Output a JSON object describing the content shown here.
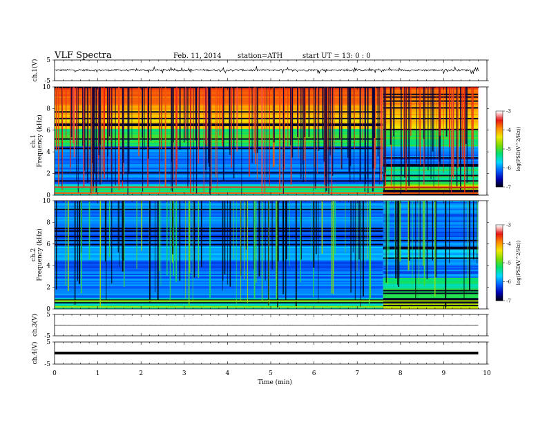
{
  "header": {
    "title": "VLF  Spectra",
    "date": "Feb. 11, 2014",
    "station": "station=ATH",
    "start": "start  UT  =    13: 0  : 0"
  },
  "chart_data": {
    "type": "spectrogram",
    "x": {
      "label": "Time  (min)",
      "range": [
        0,
        10
      ],
      "ticks": [
        "0",
        "1",
        "2",
        "3",
        "4",
        "5",
        "6",
        "7",
        "8",
        "9",
        "10"
      ],
      "data_end_min": 9.8
    },
    "panels": [
      {
        "kind": "waveform",
        "name": "ch.1",
        "ylabel": "ch.1(V)",
        "ylim": [
          -5,
          5
        ],
        "yticks": [
          "5",
          "-5"
        ],
        "level": 0.1,
        "noise": 0.45,
        "spikes": true
      },
      {
        "kind": "spectrogram",
        "name": "ch.1",
        "ylabel": "ch.1",
        "ylabel2": "Frequency  (kHz)",
        "ylim": [
          0,
          10
        ],
        "yticks": [
          "10",
          "8",
          "6",
          "4",
          "2",
          "0"
        ],
        "activity": "high",
        "regime_change_min": 7.6
      },
      {
        "kind": "spectrogram",
        "name": "ch.2",
        "ylabel": "ch.2",
        "ylabel2": "Frequency  (kHz)",
        "ylim": [
          0,
          10
        ],
        "yticks": [
          "10",
          "8",
          "6",
          "4",
          "2",
          "0"
        ],
        "activity": "low",
        "regime_change_min": 7.6
      },
      {
        "kind": "waveform",
        "name": "ch.3",
        "ylabel": "ch.3(V)",
        "ylim": [
          -5,
          5
        ],
        "yticks": [
          "5",
          "-5"
        ],
        "level": 0.0,
        "noise": 0.03,
        "spikes": false
      },
      {
        "kind": "waveform",
        "name": "ch.4",
        "ylabel": "ch.4(V)",
        "ylim": [
          -5,
          5
        ],
        "yticks": [
          "5",
          "-5"
        ],
        "level": 0.0,
        "noise": 0.0,
        "thick": true,
        "spikes": false
      }
    ],
    "colorbar": {
      "label": "log(PSD(V^2/Hz))",
      "range": [
        -7,
        -3
      ],
      "ticks": [
        "-3",
        "-4",
        "-5",
        "-6",
        "-7"
      ],
      "colors": [
        "#000000",
        "#0000b4",
        "#0060ff",
        "#00d8ff",
        "#00e070",
        "#7cdc00",
        "#f0e800",
        "#ff8c00",
        "#e81414",
        "#ffffff"
      ]
    }
  }
}
